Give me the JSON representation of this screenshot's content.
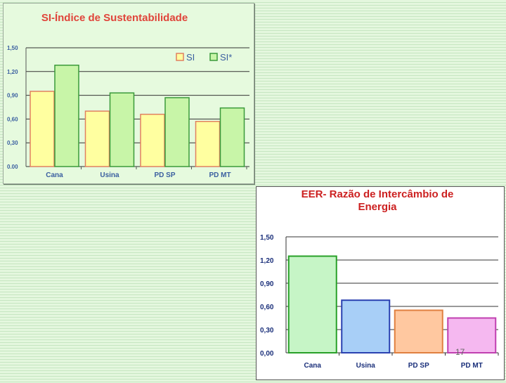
{
  "chart_data": [
    {
      "type": "bar",
      "title": "SI-Índice de Sustentabilidade",
      "categories": [
        "Cana",
        "Usina",
        "PD SP",
        "PD MT"
      ],
      "series": [
        {
          "name": "SI",
          "values": [
            0.95,
            0.7,
            0.66,
            0.57
          ],
          "color": "#ffffa0",
          "stroke": "#e08060"
        },
        {
          "name": "SI*",
          "values": [
            1.28,
            0.93,
            0.87,
            0.74
          ],
          "color": "#c8f5a8",
          "stroke": "#3a9a3a"
        }
      ],
      "yticks": [
        "0.00",
        "0,30",
        "0,60",
        "0,90",
        "1,20",
        "1,50"
      ],
      "ylim": [
        0,
        1.5
      ],
      "legend": "top-right",
      "grid": true,
      "colors": {
        "title": "#e0443a",
        "axis_text": "#3a5fa0",
        "grid": "#333333"
      }
    },
    {
      "type": "bar",
      "title": "EER- Razão de Intercâmbio de Energia",
      "categories": [
        "Cana",
        "Usina",
        "PD SP",
        "PD MT"
      ],
      "values": [
        1.25,
        0.68,
        0.55,
        0.45
      ],
      "bar_colors": [
        "#c6f5c6",
        "#a8cff7",
        "#ffc8a0",
        "#f5b8f0"
      ],
      "bar_strokes": [
        "#28a028",
        "#2a40b0",
        "#e08040",
        "#c040b0"
      ],
      "yticks": [
        "0,00",
        "0,30",
        "0,60",
        "0,90",
        "1,20",
        "1,50"
      ],
      "ylim": [
        0,
        1.5
      ],
      "grid": true,
      "colors": {
        "title": "#cc2020",
        "axis_text": "#1a2f7a",
        "grid": "#333333"
      }
    }
  ],
  "slide": {
    "number": "17"
  }
}
